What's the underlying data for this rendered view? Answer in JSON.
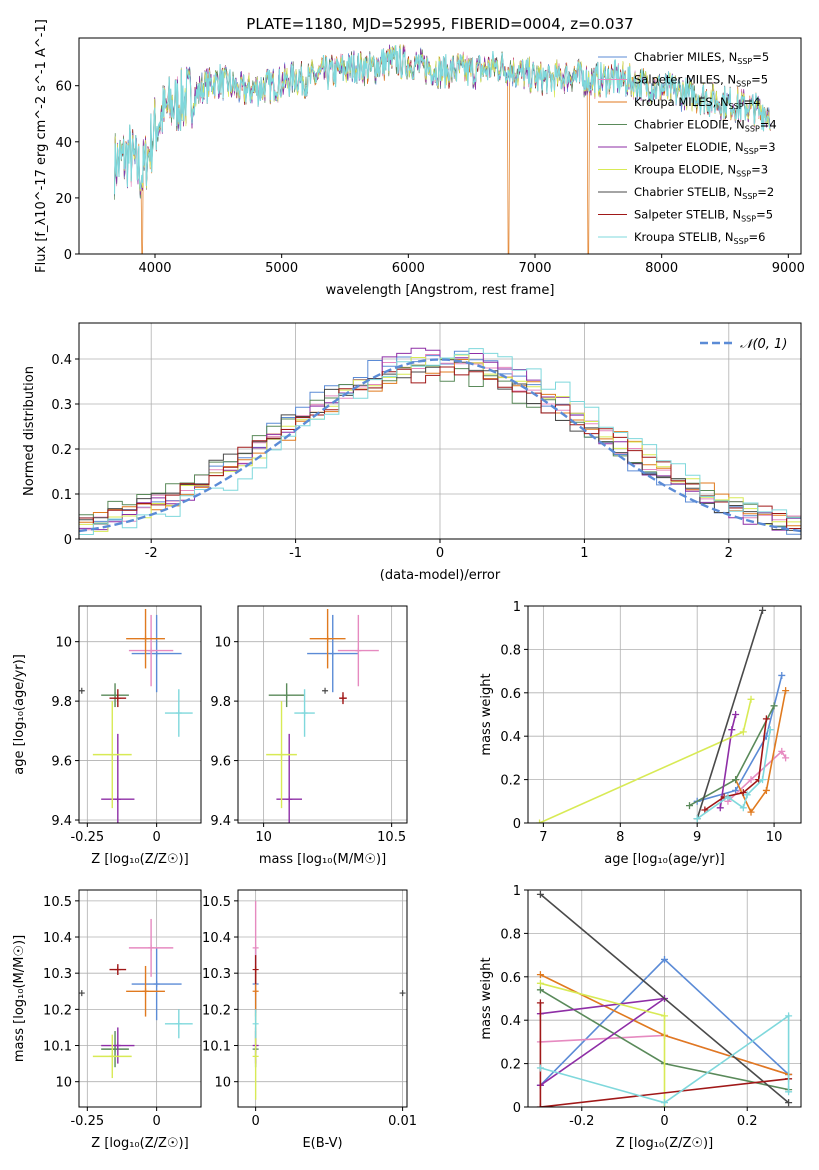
{
  "figure": {
    "title": "PLATE=1180, MJD=52995, FIBERID=0004, z=0.037"
  },
  "colors": {
    "chabrier_miles": "#5b8bd6",
    "salpeter_miles": "#e68ac0",
    "kroupa_miles": "#e07a1f",
    "chabrier_elodie": "#5a8a5a",
    "salpeter_elodie": "#8e2ea6",
    "kroupa_elodie": "#d8ea55",
    "chabrier_stelib": "#4a4a4a",
    "salpeter_stelib": "#a01818",
    "kroupa_stelib": "#7fd8dc",
    "normal_curve": "#5b8bd6",
    "grid": "#b0b0b0"
  },
  "chart_data": [
    {
      "id": "spectrum",
      "type": "line",
      "xlabel": "wavelength [Angstrom, rest frame]",
      "ylabel": "Flux [f_λ10^-17 erg cm^-2 s^-1 A^-1]",
      "xlim": [
        3400,
        9100
      ],
      "ylim": [
        0,
        77
      ],
      "xticks": [
        4000,
        5000,
        6000,
        7000,
        8000,
        9000
      ],
      "yticks": [
        0,
        20,
        40,
        60
      ],
      "grid": false,
      "legend_position": "top-right",
      "legend": [
        {
          "label": "Chabrier MILES, N",
          "sub": "SSP",
          "tail": "=5",
          "color": "chabrier_miles"
        },
        {
          "label": "Salpeter MILES, N",
          "sub": "SSP",
          "tail": "=5",
          "color": "salpeter_miles"
        },
        {
          "label": "Kroupa MILES, N",
          "sub": "SSP",
          "tail": "=4",
          "color": "kroupa_miles"
        },
        {
          "label": "Chabrier ELODIE, N",
          "sub": "SSP",
          "tail": "=4",
          "color": "chabrier_elodie"
        },
        {
          "label": "Salpeter ELODIE, N",
          "sub": "SSP",
          "tail": "=3",
          "color": "salpeter_elodie"
        },
        {
          "label": "Kroupa ELODIE, N",
          "sub": "SSP",
          "tail": "=3",
          "color": "kroupa_elodie"
        },
        {
          "label": "Chabrier STELIB, N",
          "sub": "SSP",
          "tail": "=2",
          "color": "chabrier_stelib"
        },
        {
          "label": "Salpeter STELIB, N",
          "sub": "SSP",
          "tail": "=5",
          "color": "salpeter_stelib"
        },
        {
          "label": "Kroupa STELIB, N",
          "sub": "SSP",
          "tail": "=6",
          "color": "kroupa_stelib"
        }
      ],
      "spectrum_envelope": {
        "x": [
          3680,
          3800,
          3900,
          4000,
          4100,
          4200,
          4300,
          4400,
          4500,
          4600,
          4700,
          4800,
          4900,
          5000,
          5100,
          5200,
          5300,
          5400,
          5500,
          5600,
          5700,
          5800,
          5900,
          6000,
          6100,
          6200,
          6300,
          6400,
          6500,
          6600,
          6700,
          6800,
          6900,
          7000,
          7100,
          7200,
          7300,
          7400,
          7500,
          7600,
          7700,
          7800,
          7900,
          8000,
          8100,
          8200,
          8300,
          8400,
          8500,
          8600,
          8700,
          8860
        ],
        "y": [
          32,
          35,
          28,
          45,
          52,
          55,
          56,
          60,
          62,
          60,
          58,
          59,
          60,
          61,
          63,
          62,
          64,
          65,
          66,
          67,
          66,
          68,
          69,
          68,
          67,
          66,
          65,
          66,
          65,
          66,
          67,
          66,
          64,
          63,
          62,
          63,
          64,
          62,
          62,
          63,
          62,
          61,
          60,
          59,
          58,
          57,
          56,
          55,
          54,
          53,
          52,
          50
        ]
      },
      "model_dropouts_x": [
        3900,
        6790,
        7420
      ]
    },
    {
      "id": "residuals",
      "type": "histogram",
      "xlabel": "(data-model)/error",
      "ylabel": "Normed distribution",
      "xlim": [
        -2.5,
        2.5
      ],
      "ylim": [
        0,
        0.48
      ],
      "xticks": [
        -2,
        -1,
        0,
        1,
        2
      ],
      "yticks": [
        0.0,
        0.1,
        0.2,
        0.3,
        0.4
      ],
      "grid": true,
      "legend_position": "top-right",
      "legend": [
        {
          "label": "𝒩(0, 1)",
          "color": "normal_curve"
        }
      ],
      "bin_width": 0.1
    },
    {
      "id": "age_vs_z",
      "type": "errorbar",
      "xlabel": "Z [log₁₀(Z/Z☉)]",
      "ylabel": "age  [log₁₀(age/yr)]",
      "xlim": [
        -0.28,
        0.16
      ],
      "ylim": [
        9.39,
        10.12
      ],
      "xticks": [
        -0.25,
        0.0
      ],
      "yticks": [
        9.4,
        9.6,
        9.8,
        10.0
      ],
      "grid": true,
      "points": [
        {
          "model": "chabrier_miles",
          "x": 0.0,
          "y": 9.96,
          "xerr": 0.09,
          "yerr": 0.13
        },
        {
          "model": "salpeter_miles",
          "x": -0.02,
          "y": 9.97,
          "xerr": 0.08,
          "yerr": 0.12
        },
        {
          "model": "kroupa_miles",
          "x": -0.04,
          "y": 10.01,
          "xerr": 0.07,
          "yerr": 0.1
        },
        {
          "model": "chabrier_elodie",
          "x": -0.15,
          "y": 9.82,
          "xerr": 0.05,
          "yerr": 0.04
        },
        {
          "model": "salpeter_elodie",
          "x": -0.14,
          "y": 9.47,
          "xerr": 0.06,
          "yerr": 0.22
        },
        {
          "model": "kroupa_elodie",
          "x": -0.16,
          "y": 9.62,
          "xerr": 0.07,
          "yerr": 0.18
        },
        {
          "model": "chabrier_stelib",
          "x": -0.27,
          "y": 9.835,
          "xerr": 0.002,
          "yerr": 0.002
        },
        {
          "model": "salpeter_stelib",
          "x": -0.14,
          "y": 9.81,
          "xerr": 0.03,
          "yerr": 0.03
        },
        {
          "model": "kroupa_stelib",
          "x": 0.08,
          "y": 9.76,
          "xerr": 0.05,
          "yerr": 0.08
        }
      ]
    },
    {
      "id": "age_vs_mass",
      "type": "errorbar",
      "xlabel": "mass [log₁₀(M/M☉)]",
      "ylabel": "",
      "xlim": [
        9.9,
        10.56
      ],
      "ylim": [
        9.39,
        10.12
      ],
      "xticks": [
        10.0,
        10.5
      ],
      "yticks": [
        9.4,
        9.6,
        9.8,
        10.0
      ],
      "grid": true,
      "points": [
        {
          "model": "chabrier_miles",
          "x": 10.27,
          "y": 9.96,
          "xerr": 0.1,
          "yerr": 0.13
        },
        {
          "model": "salpeter_miles",
          "x": 10.37,
          "y": 9.97,
          "xerr": 0.08,
          "yerr": 0.12
        },
        {
          "model": "kroupa_miles",
          "x": 10.25,
          "y": 10.01,
          "xerr": 0.07,
          "yerr": 0.1
        },
        {
          "model": "chabrier_elodie",
          "x": 10.09,
          "y": 9.82,
          "xerr": 0.07,
          "yerr": 0.04
        },
        {
          "model": "salpeter_elodie",
          "x": 10.1,
          "y": 9.47,
          "xerr": 0.05,
          "yerr": 0.22
        },
        {
          "model": "kroupa_elodie",
          "x": 10.07,
          "y": 9.62,
          "xerr": 0.06,
          "yerr": 0.18
        },
        {
          "model": "chabrier_stelib",
          "x": 10.24,
          "y": 9.835,
          "xerr": 0.002,
          "yerr": 0.002
        },
        {
          "model": "salpeter_stelib",
          "x": 10.31,
          "y": 9.81,
          "xerr": 0.015,
          "yerr": 0.02
        },
        {
          "model": "kroupa_stelib",
          "x": 10.16,
          "y": 9.76,
          "xerr": 0.04,
          "yerr": 0.08
        }
      ]
    },
    {
      "id": "weight_vs_age",
      "type": "line",
      "xlabel": "age  [log₁₀(age/yr)]",
      "ylabel": "mass weight",
      "xlim": [
        6.8,
        10.35
      ],
      "ylim": [
        0,
        1.0
      ],
      "xticks": [
        7,
        8,
        9,
        10
      ],
      "yticks": [
        0.0,
        0.2,
        0.4,
        0.6,
        0.8,
        1.0
      ],
      "grid": true,
      "series": [
        {
          "model": "chabrier_miles",
          "x": [
            9.0,
            9.5,
            9.9,
            10.1
          ],
          "y": [
            0.1,
            0.15,
            0.4,
            0.68
          ]
        },
        {
          "model": "salpeter_miles",
          "x": [
            9.4,
            9.7,
            10.1,
            10.15
          ],
          "y": [
            0.1,
            0.2,
            0.33,
            0.3
          ]
        },
        {
          "model": "kroupa_miles",
          "x": [
            9.5,
            9.7,
            9.9,
            10.15
          ],
          "y": [
            0.2,
            0.05,
            0.15,
            0.61
          ]
        },
        {
          "model": "chabrier_elodie",
          "x": [
            8.9,
            9.5,
            10.0
          ],
          "y": [
            0.08,
            0.2,
            0.54
          ]
        },
        {
          "model": "salpeter_elodie",
          "x": [
            9.3,
            9.45,
            9.5
          ],
          "y": [
            0.07,
            0.43,
            0.5
          ]
        },
        {
          "model": "kroupa_elodie",
          "x": [
            6.95,
            9.6,
            9.7
          ],
          "y": [
            0.0,
            0.42,
            0.57
          ]
        },
        {
          "model": "chabrier_stelib",
          "x": [
            9.0,
            9.85
          ],
          "y": [
            0.02,
            0.98
          ]
        },
        {
          "model": "salpeter_stelib",
          "x": [
            9.1,
            9.35,
            9.6,
            9.8,
            9.9
          ],
          "y": [
            0.06,
            0.12,
            0.14,
            0.2,
            0.48
          ]
        },
        {
          "model": "kroupa_stelib",
          "x": [
            9.0,
            9.4,
            9.6,
            9.65,
            9.85,
            9.95
          ],
          "y": [
            0.02,
            0.12,
            0.07,
            0.13,
            0.2,
            0.43
          ]
        }
      ]
    },
    {
      "id": "mass_vs_z",
      "type": "errorbar",
      "xlabel": "Z [log₁₀(Z/Z☉)]",
      "ylabel": "mass [log₁₀(M/M☉)]",
      "xlim": [
        -0.28,
        0.16
      ],
      "ylim": [
        9.93,
        10.53
      ],
      "xticks": [
        -0.25,
        0.0
      ],
      "yticks": [
        10.0,
        10.1,
        10.2,
        10.3,
        10.4,
        10.5
      ],
      "grid": true,
      "points": [
        {
          "model": "chabrier_miles",
          "x": 0.0,
          "y": 10.27,
          "xerr": 0.09,
          "yerr": 0.1
        },
        {
          "model": "salpeter_miles",
          "x": -0.02,
          "y": 10.37,
          "xerr": 0.08,
          "yerr": 0.08
        },
        {
          "model": "kroupa_miles",
          "x": -0.04,
          "y": 10.25,
          "xerr": 0.07,
          "yerr": 0.07
        },
        {
          "model": "chabrier_elodie",
          "x": -0.15,
          "y": 10.09,
          "xerr": 0.05,
          "yerr": 0.05
        },
        {
          "model": "salpeter_elodie",
          "x": -0.14,
          "y": 10.1,
          "xerr": 0.06,
          "yerr": 0.05
        },
        {
          "model": "kroupa_elodie",
          "x": -0.16,
          "y": 10.07,
          "xerr": 0.07,
          "yerr": 0.06
        },
        {
          "model": "chabrier_stelib",
          "x": -0.27,
          "y": 10.245,
          "xerr": 0.002,
          "yerr": 0.002
        },
        {
          "model": "salpeter_stelib",
          "x": -0.14,
          "y": 10.31,
          "xerr": 0.03,
          "yerr": 0.015
        },
        {
          "model": "kroupa_stelib",
          "x": 0.08,
          "y": 10.16,
          "xerr": 0.05,
          "yerr": 0.04
        }
      ]
    },
    {
      "id": "mass_vs_ebv",
      "type": "errorbar",
      "xlabel": "E(B-V)",
      "ylabel": "",
      "xlim": [
        -0.0012,
        0.0103
      ],
      "ylim": [
        9.93,
        10.53
      ],
      "xticks": [
        0.0,
        0.01
      ],
      "yticks": [
        10.0,
        10.1,
        10.2,
        10.3,
        10.4,
        10.5
      ],
      "grid": true,
      "points": [
        {
          "model": "chabrier_miles",
          "x": 0.0,
          "y": 10.27,
          "xerr": 0.0,
          "yerr": 0.1
        },
        {
          "model": "salpeter_miles",
          "x": 0.0,
          "y": 10.37,
          "xerr": 0.0,
          "yerr": 0.13
        },
        {
          "model": "kroupa_miles",
          "x": 0.0,
          "y": 10.25,
          "xerr": 0.0,
          "yerr": 0.07
        },
        {
          "model": "chabrier_elodie",
          "x": 0.0,
          "y": 10.09,
          "xerr": 0.0,
          "yerr": 0.05
        },
        {
          "model": "salpeter_elodie",
          "x": 0.0,
          "y": 10.1,
          "xerr": 0.0,
          "yerr": 0.05
        },
        {
          "model": "kroupa_elodie",
          "x": 0.0,
          "y": 10.07,
          "xerr": 0.0,
          "yerr": 0.12
        },
        {
          "model": "chabrier_stelib",
          "x": 0.01,
          "y": 10.245,
          "xerr": 0.0,
          "yerr": 0.002
        },
        {
          "model": "salpeter_stelib",
          "x": 0.0,
          "y": 10.31,
          "xerr": 0.0,
          "yerr": 0.04
        },
        {
          "model": "kroupa_stelib",
          "x": 0.0,
          "y": 10.16,
          "xerr": 0.0,
          "yerr": 0.04
        }
      ]
    },
    {
      "id": "weight_vs_z",
      "type": "line",
      "xlabel": "Z [log₁₀(Z/Z☉)]",
      "ylabel": "mass weight",
      "xlim": [
        -0.33,
        0.33
      ],
      "ylim": [
        0,
        1.0
      ],
      "xticks": [
        -0.2,
        0.0,
        0.2
      ],
      "yticks": [
        0.0,
        0.2,
        0.4,
        0.6,
        0.8,
        1.0
      ],
      "grid": true,
      "series": [
        {
          "model": "chabrier_miles",
          "x": [
            -0.3,
            0.0,
            0.3
          ],
          "y": [
            0.1,
            0.68,
            0.15
          ]
        },
        {
          "model": "salpeter_miles",
          "x": [
            -0.3,
            0.0,
            0.3
          ],
          "y": [
            0.3,
            0.33,
            0.15
          ]
        },
        {
          "model": "kroupa_miles",
          "x": [
            -0.3,
            0.0,
            0.3
          ],
          "y": [
            0.61,
            0.33,
            0.15
          ]
        },
        {
          "model": "chabrier_elodie",
          "x": [
            -0.3,
            0.0,
            0.3
          ],
          "y": [
            0.54,
            0.2,
            0.08
          ]
        },
        {
          "model": "salpeter_elodie",
          "x": [
            -0.3,
            0.0,
            -0.3
          ],
          "y": [
            0.43,
            0.5,
            0.1
          ]
        },
        {
          "model": "kroupa_elodie",
          "x": [
            -0.3,
            0.0,
            0.0
          ],
          "y": [
            0.57,
            0.42,
            0.0
          ]
        },
        {
          "model": "chabrier_stelib",
          "x": [
            -0.3,
            0.3
          ],
          "y": [
            0.98,
            0.02
          ]
        },
        {
          "model": "salpeter_stelib",
          "x": [
            -0.3,
            -0.3,
            0.3
          ],
          "y": [
            0.48,
            0.0,
            0.13
          ]
        },
        {
          "model": "kroupa_stelib",
          "x": [
            -0.3,
            0.0,
            0.3,
            0.3
          ],
          "y": [
            0.18,
            0.02,
            0.42,
            0.07
          ]
        }
      ]
    }
  ]
}
